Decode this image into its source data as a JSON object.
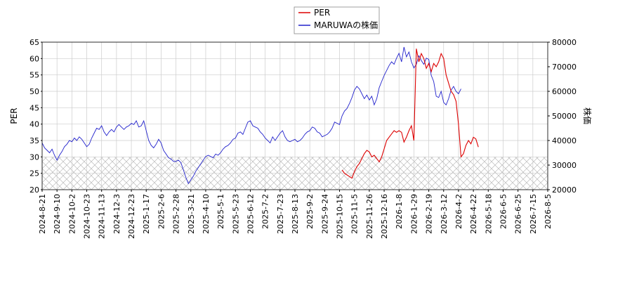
{
  "chart_data": {
    "type": "line",
    "legend": {
      "placement": "top-center",
      "entries": [
        "PER",
        "MARUWAの株価"
      ]
    },
    "left_axis": {
      "label": "PER",
      "range": [
        20,
        65
      ],
      "ticks": [
        "20",
        "25",
        "30",
        "35",
        "40",
        "45",
        "50",
        "55",
        "60",
        "65"
      ]
    },
    "right_axis": {
      "label": "株価",
      "range": [
        20000,
        80000
      ],
      "ticks": [
        "20000",
        "30000",
        "40000",
        "50000",
        "60000",
        "70000",
        "80000"
      ]
    },
    "x_axis": {
      "ticks": [
        "2024-8-21",
        "2024-9-10",
        "2024-10-2",
        "2024-10-23",
        "2024-11-13",
        "2024-12-3",
        "2024-12-23",
        "2025-1-17",
        "2025-2-6",
        "2025-2-28",
        "2025-3-21",
        "2025-4-10",
        "2025-5-1",
        "2025-5-23",
        "2025-6-12",
        "2025-7-2",
        "2025-7-23",
        "2025-8-13",
        "2025-9-2",
        "2025-9-24",
        "2025-10-15",
        "2025-11-5",
        "2025-11-26",
        "2025-12-16",
        "2026-1-8",
        "2026-1-29",
        "2026-2-19",
        "2026-3-12",
        "2026-4-2",
        "2026-4-22",
        "2026-5-18",
        "2026-6-5",
        "2026-6-25",
        "2026-7-15",
        "2026-8-5"
      ]
    },
    "grid": true,
    "hatched_band": {
      "axis": "left",
      "from": 20,
      "to": 30
    },
    "colors": {
      "per": "#dd0000",
      "price": "#2222cc",
      "grid": "#cccccc",
      "hatch": "#bbbbbb"
    },
    "series": [
      {
        "name": "MARUWAの株価",
        "axis": "right",
        "points": [
          [
            0,
            39000
          ],
          [
            0.5,
            37000
          ],
          [
            1,
            36000
          ],
          [
            1.5,
            35000
          ],
          [
            2,
            36500
          ],
          [
            2.5,
            34000
          ],
          [
            3,
            32000
          ],
          [
            3.5,
            34000
          ],
          [
            4,
            35500
          ],
          [
            4.5,
            37500
          ],
          [
            5,
            38500
          ],
          [
            5.5,
            40000
          ],
          [
            6,
            39500
          ],
          [
            6.5,
            41000
          ],
          [
            7,
            40000
          ],
          [
            7.5,
            41500
          ],
          [
            8,
            40500
          ],
          [
            8.5,
            39000
          ],
          [
            9,
            37500
          ],
          [
            9.5,
            38500
          ],
          [
            10,
            41000
          ],
          [
            10.5,
            43000
          ],
          [
            11,
            45000
          ],
          [
            11.5,
            44500
          ],
          [
            12,
            46000
          ],
          [
            12.5,
            43500
          ],
          [
            13,
            42000
          ],
          [
            13.5,
            43500
          ],
          [
            14,
            44500
          ],
          [
            14.5,
            43500
          ],
          [
            15,
            45500
          ],
          [
            15.5,
            46500
          ],
          [
            16,
            45500
          ],
          [
            16.5,
            44500
          ],
          [
            17,
            45500
          ],
          [
            17.5,
            46000
          ],
          [
            18,
            47000
          ],
          [
            18.5,
            46500
          ],
          [
            19,
            48000
          ],
          [
            19.5,
            45500
          ],
          [
            20,
            46000
          ],
          [
            20.5,
            48000
          ],
          [
            21,
            44000
          ],
          [
            21.5,
            40000
          ],
          [
            22,
            38000
          ],
          [
            22.5,
            37000
          ],
          [
            23,
            38500
          ],
          [
            23.5,
            40500
          ],
          [
            24,
            39000
          ],
          [
            24.5,
            36000
          ],
          [
            25,
            34500
          ],
          [
            25.5,
            33000
          ],
          [
            26,
            32500
          ],
          [
            26.5,
            31500
          ],
          [
            27,
            31500
          ],
          [
            27.5,
            32000
          ],
          [
            28,
            31000
          ],
          [
            28.5,
            28000
          ],
          [
            29,
            25000
          ],
          [
            29.5,
            22500
          ],
          [
            30,
            24000
          ],
          [
            30.5,
            25500
          ],
          [
            31,
            27500
          ],
          [
            31.5,
            29000
          ],
          [
            32,
            30500
          ],
          [
            32.5,
            32000
          ],
          [
            33,
            33500
          ],
          [
            33.5,
            34000
          ],
          [
            34,
            33500
          ],
          [
            34.5,
            33000
          ],
          [
            35,
            34500
          ],
          [
            35.5,
            34000
          ],
          [
            36,
            35000
          ],
          [
            36.5,
            36500
          ],
          [
            37,
            37500
          ],
          [
            37.5,
            38000
          ],
          [
            38,
            39000
          ],
          [
            38.5,
            40500
          ],
          [
            39,
            41000
          ],
          [
            39.5,
            43000
          ],
          [
            40,
            43500
          ],
          [
            40.5,
            42500
          ],
          [
            41,
            45000
          ],
          [
            41.5,
            47500
          ],
          [
            42,
            48000
          ],
          [
            42.5,
            46000
          ],
          [
            43,
            45500
          ],
          [
            43.5,
            45000
          ],
          [
            44,
            43500
          ],
          [
            44.5,
            42500
          ],
          [
            45,
            41000
          ],
          [
            45.5,
            40000
          ],
          [
            46,
            39000
          ],
          [
            46.5,
            41500
          ],
          [
            47,
            40000
          ],
          [
            47.5,
            41500
          ],
          [
            48,
            43000
          ],
          [
            48.5,
            44000
          ],
          [
            49,
            41500
          ],
          [
            49.5,
            40000
          ],
          [
            50,
            39500
          ],
          [
            50.5,
            40000
          ],
          [
            51,
            40500
          ],
          [
            51.5,
            39500
          ],
          [
            52,
            40000
          ],
          [
            52.5,
            41000
          ],
          [
            53,
            42500
          ],
          [
            53.5,
            43500
          ],
          [
            54,
            44000
          ],
          [
            54.5,
            45500
          ],
          [
            55,
            45000
          ],
          [
            55.5,
            43500
          ],
          [
            56,
            43000
          ],
          [
            56.5,
            41500
          ],
          [
            57,
            42000
          ],
          [
            57.5,
            42500
          ],
          [
            58,
            43500
          ],
          [
            58.5,
            45000
          ],
          [
            59,
            47500
          ],
          [
            59.5,
            47000
          ],
          [
            60,
            46500
          ],
          [
            60.5,
            50000
          ],
          [
            61,
            52000
          ],
          [
            61.5,
            53000
          ],
          [
            62,
            55000
          ],
          [
            62.5,
            57500
          ],
          [
            63,
            60500
          ],
          [
            63.5,
            62000
          ],
          [
            64,
            61000
          ],
          [
            64.5,
            59000
          ],
          [
            65,
            57000
          ],
          [
            65.5,
            58500
          ],
          [
            66,
            56500
          ],
          [
            66.5,
            58000
          ],
          [
            67,
            54500
          ],
          [
            67.5,
            57000
          ],
          [
            68,
            61500
          ],
          [
            68.5,
            64000
          ],
          [
            69,
            66500
          ],
          [
            69.5,
            68500
          ],
          [
            70,
            70500
          ],
          [
            70.5,
            72000
          ],
          [
            71,
            71000
          ],
          [
            71.5,
            73500
          ],
          [
            72,
            75500
          ],
          [
            72.5,
            72000
          ],
          [
            73,
            78000
          ],
          [
            73.5,
            74000
          ],
          [
            74,
            76000
          ],
          [
            74.5,
            72000
          ],
          [
            75,
            69500
          ],
          [
            75.5,
            71000
          ],
          [
            76,
            74500
          ],
          [
            76.5,
            72500
          ],
          [
            77,
            71000
          ],
          [
            77.5,
            73500
          ],
          [
            78,
            73000
          ],
          [
            78.5,
            66500
          ],
          [
            79,
            64000
          ],
          [
            79.5,
            58000
          ],
          [
            80,
            57500
          ],
          [
            80.5,
            60000
          ],
          [
            81,
            55500
          ],
          [
            81.5,
            54500
          ],
          [
            82,
            57000
          ],
          [
            82.5,
            60500
          ],
          [
            83,
            62000
          ],
          [
            83.5,
            60000
          ],
          [
            84,
            59000
          ],
          [
            84.5,
            61000
          ]
        ]
      },
      {
        "name": "PER",
        "axis": "left",
        "points": [
          [
            60.5,
            26.0
          ],
          [
            61,
            25.0
          ],
          [
            61.5,
            24.5
          ],
          [
            62,
            24.0
          ],
          [
            62.5,
            23.5
          ],
          [
            63,
            25.5
          ],
          [
            63.5,
            27.0
          ],
          [
            64,
            28.0
          ],
          [
            64.5,
            29.5
          ],
          [
            65,
            31.0
          ],
          [
            65.5,
            32.0
          ],
          [
            66,
            31.5
          ],
          [
            66.5,
            30.0
          ],
          [
            67,
            30.5
          ],
          [
            67.5,
            29.5
          ],
          [
            68,
            28.5
          ],
          [
            68.5,
            30.0
          ],
          [
            69,
            32.5
          ],
          [
            69.5,
            35.0
          ],
          [
            70,
            36.0
          ],
          [
            70.5,
            37.0
          ],
          [
            71,
            38.0
          ],
          [
            71.5,
            37.5
          ],
          [
            72,
            38.0
          ],
          [
            72.5,
            37.5
          ],
          [
            73,
            34.5
          ],
          [
            73.5,
            36.0
          ],
          [
            74,
            38.0
          ],
          [
            74.5,
            39.5
          ],
          [
            75,
            35.0
          ],
          [
            75.5,
            63.0
          ],
          [
            76,
            59.0
          ],
          [
            76.5,
            61.5
          ],
          [
            77,
            60.0
          ],
          [
            77.5,
            57.0
          ],
          [
            78,
            58.5
          ],
          [
            78.5,
            56.0
          ],
          [
            79,
            58.5
          ],
          [
            79.5,
            57.5
          ],
          [
            80,
            59.0
          ],
          [
            80.5,
            61.5
          ],
          [
            81,
            60.0
          ],
          [
            81.5,
            55.0
          ],
          [
            82,
            52.5
          ],
          [
            82.5,
            50.0
          ],
          [
            83,
            49.0
          ],
          [
            83.5,
            47.0
          ],
          [
            84,
            40.0
          ],
          [
            84.5,
            30.0
          ],
          [
            85,
            31.0
          ],
          [
            85.5,
            33.5
          ],
          [
            86,
            35.0
          ],
          [
            86.5,
            34.0
          ],
          [
            87,
            36.0
          ],
          [
            87.5,
            35.5
          ],
          [
            88,
            33.0
          ]
        ]
      }
    ]
  }
}
